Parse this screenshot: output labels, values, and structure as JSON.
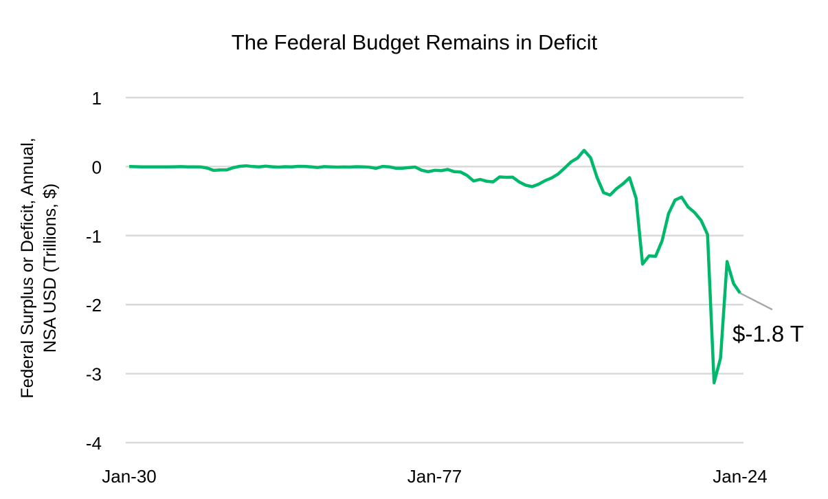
{
  "chart_data": {
    "type": "line",
    "title": "The Federal Budget Remains in Deficit",
    "xlabel": "",
    "ylabel": [
      "Federal Surplus or Deficit, Annual,",
      "NSA USD (Trillions, $)"
    ],
    "x_tick_labels": [
      "Jan-30",
      "Jan-77",
      "Jan-24"
    ],
    "x_tick_years": [
      1930,
      1977,
      2024
    ],
    "y_ticks": [
      1,
      0,
      -1,
      -2,
      -3,
      -4
    ],
    "y_tick_labels": [
      "1",
      "0",
      "-1",
      "-2",
      "-3",
      "-4"
    ],
    "ylim": [
      -4,
      1
    ],
    "xlim": [
      1930,
      2024
    ],
    "grid": true,
    "legend": "none",
    "line_color": "#00b86b",
    "grid_color": "#d9d9d9",
    "annotation": {
      "text": "$-1.8 T",
      "year": 2024,
      "value": -1.8331
    },
    "series": [
      {
        "x": [
          1930,
          1931,
          1932,
          1933,
          1934,
          1935,
          1936,
          1937,
          1938,
          1939,
          1940,
          1941,
          1942,
          1943,
          1944,
          1945,
          1946,
          1947,
          1948,
          1949,
          1950,
          1951,
          1952,
          1953,
          1954,
          1955,
          1956,
          1957,
          1958,
          1959,
          1960,
          1961,
          1962,
          1963,
          1964,
          1965,
          1966,
          1967,
          1968,
          1969,
          1970,
          1971,
          1972,
          1973,
          1974,
          1975,
          1976,
          1977,
          1978,
          1979,
          1980,
          1981,
          1982,
          1983,
          1984,
          1985,
          1986,
          1987,
          1988,
          1989,
          1990,
          1991,
          1992,
          1993,
          1994,
          1995,
          1996,
          1997,
          1998,
          1999,
          2000,
          2001,
          2002,
          2003,
          2004,
          2005,
          2006,
          2007,
          2008,
          2009,
          2010,
          2011,
          2012,
          2013,
          2014,
          2015,
          2016,
          2017,
          2018,
          2019,
          2020,
          2021,
          2022,
          2023,
          2024
        ],
        "values": [
          0.001,
          -0.0005,
          -0.0027,
          -0.0026,
          -0.0036,
          -0.0028,
          -0.0044,
          -0.0022,
          -0.0001,
          -0.0028,
          -0.0029,
          -0.0049,
          -0.0205,
          -0.0547,
          -0.0474,
          -0.0474,
          -0.0159,
          0.004,
          0.0119,
          0.0006,
          -0.0031,
          0.0061,
          -0.0015,
          -0.0065,
          -0.0012,
          -0.003,
          0.0039,
          0.0034,
          -0.0028,
          -0.0128,
          0.0003,
          -0.0033,
          -0.0071,
          -0.0048,
          -0.0059,
          -0.0014,
          -0.0037,
          -0.0086,
          -0.0252,
          0.0032,
          -0.0028,
          -0.023,
          -0.0234,
          -0.0149,
          -0.0061,
          -0.0532,
          -0.0737,
          -0.0537,
          -0.059,
          -0.0407,
          -0.0738,
          -0.079,
          -0.128,
          -0.2078,
          -0.1854,
          -0.2123,
          -0.2213,
          -0.1497,
          -0.1552,
          -0.1525,
          -0.221,
          -0.2692,
          -0.2903,
          -0.255,
          -0.2032,
          -0.164,
          -0.1075,
          -0.0219,
          0.0692,
          0.1256,
          0.2362,
          0.1282,
          -0.1578,
          -0.3777,
          -0.4127,
          -0.3183,
          -0.2482,
          -0.1606,
          -0.4586,
          -1.4127,
          -1.2942,
          -1.2997,
          -1.0767,
          -0.6798,
          -0.4851,
          -0.4418,
          -0.5848,
          -0.6652,
          -0.7791,
          -0.9839,
          -3.1319,
          -2.7753,
          -1.3755,
          -1.6941,
          -1.8331
        ]
      }
    ]
  }
}
